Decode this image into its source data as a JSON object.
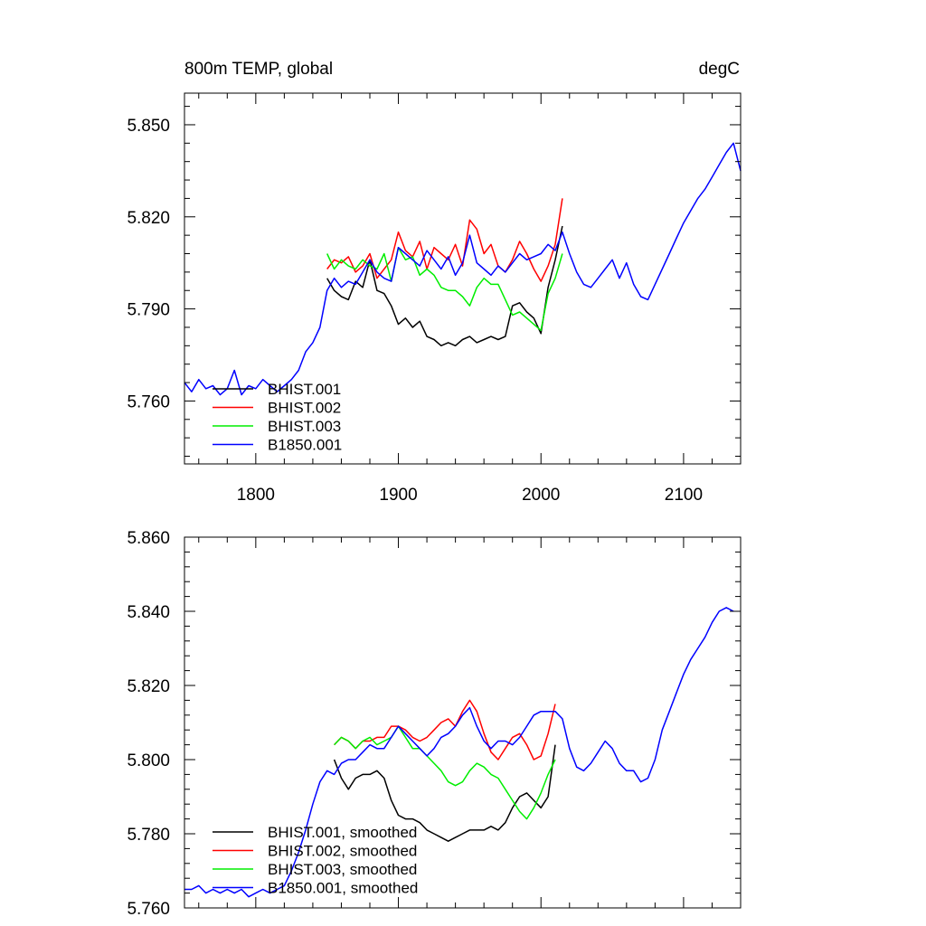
{
  "panels": [
    {
      "id": "top",
      "title_left": "800m TEMP, global",
      "title_right": "degC",
      "xlim": [
        1750,
        2140
      ],
      "ylim": [
        5.7395,
        5.8603
      ],
      "x_ticks": [
        1800,
        1900,
        2000,
        2100
      ],
      "x_tick_labels": [
        "1800",
        "1900",
        "2000",
        "2100"
      ],
      "y_ticks": [
        5.76,
        5.79,
        5.82,
        5.85
      ],
      "y_tick_labels": [
        "5.760",
        "5.790",
        "5.820",
        "5.850"
      ],
      "legend": [
        "BHIST.001",
        "BHIST.002",
        "BHIST.003",
        "B1850.001"
      ]
    },
    {
      "id": "bottom",
      "title_left": "",
      "title_right": "",
      "xlim": [
        1750,
        2140
      ],
      "ylim": [
        5.76,
        5.86
      ],
      "x_ticks": [
        1800,
        1900,
        2000,
        2100
      ],
      "x_tick_labels": [],
      "y_ticks": [
        5.76,
        5.78,
        5.8,
        5.82,
        5.84,
        5.86
      ],
      "y_tick_labels": [
        "5.760",
        "5.780",
        "5.800",
        "5.820",
        "5.840",
        "5.860"
      ],
      "legend": [
        "BHIST.001, smoothed",
        "BHIST.002, smoothed",
        "BHIST.003, smoothed",
        "B1850.001, smoothed"
      ]
    }
  ],
  "colors": {
    "BHIST.001": "#000000",
    "BHIST.002": "#ff0000",
    "BHIST.003": "#00ee00",
    "B1850.001": "#0000ff"
  },
  "chart_data": [
    {
      "type": "line",
      "series": [
        {
          "name": "BHIST.001",
          "color": "#000000",
          "x": [
            1850,
            1855,
            1860,
            1865,
            1870,
            1875,
            1880,
            1885,
            1890,
            1895,
            1900,
            1905,
            1910,
            1915,
            1920,
            1925,
            1930,
            1935,
            1940,
            1945,
            1950,
            1955,
            1960,
            1965,
            1970,
            1975,
            1980,
            1985,
            1990,
            1995,
            2000,
            2005,
            2010,
            2015
          ],
          "y": [
            5.8,
            5.796,
            5.794,
            5.793,
            5.799,
            5.797,
            5.806,
            5.796,
            5.795,
            5.791,
            5.785,
            5.787,
            5.784,
            5.786,
            5.781,
            5.78,
            5.778,
            5.779,
            5.778,
            5.78,
            5.781,
            5.779,
            5.78,
            5.781,
            5.78,
            5.781,
            5.791,
            5.792,
            5.789,
            5.787,
            5.782,
            5.797,
            5.806,
            5.817
          ]
        },
        {
          "name": "BHIST.002",
          "color": "#ff0000",
          "x": [
            1850,
            1855,
            1860,
            1865,
            1870,
            1875,
            1880,
            1885,
            1890,
            1895,
            1900,
            1905,
            1910,
            1915,
            1920,
            1925,
            1930,
            1935,
            1940,
            1945,
            1950,
            1955,
            1960,
            1965,
            1970,
            1975,
            1980,
            1985,
            1990,
            1995,
            2000,
            2005,
            2010,
            2015
          ],
          "y": [
            5.803,
            5.806,
            5.805,
            5.807,
            5.802,
            5.804,
            5.808,
            5.8,
            5.803,
            5.806,
            5.815,
            5.809,
            5.807,
            5.812,
            5.803,
            5.81,
            5.808,
            5.806,
            5.811,
            5.804,
            5.819,
            5.816,
            5.808,
            5.811,
            5.804,
            5.802,
            5.806,
            5.812,
            5.808,
            5.803,
            5.799,
            5.804,
            5.811,
            5.826
          ]
        },
        {
          "name": "BHIST.003",
          "color": "#00ee00",
          "x": [
            1850,
            1855,
            1860,
            1865,
            1870,
            1875,
            1880,
            1885,
            1890,
            1895,
            1900,
            1905,
            1910,
            1915,
            1920,
            1925,
            1930,
            1935,
            1940,
            1945,
            1950,
            1955,
            1960,
            1965,
            1970,
            1975,
            1980,
            1985,
            1990,
            1995,
            2000,
            2005,
            2010,
            2015
          ],
          "y": [
            5.808,
            5.803,
            5.806,
            5.804,
            5.803,
            5.806,
            5.804,
            5.803,
            5.808,
            5.799,
            5.81,
            5.806,
            5.807,
            5.801,
            5.803,
            5.801,
            5.797,
            5.796,
            5.796,
            5.794,
            5.791,
            5.797,
            5.8,
            5.798,
            5.798,
            5.793,
            5.788,
            5.789,
            5.787,
            5.785,
            5.783,
            5.795,
            5.8,
            5.808
          ]
        },
        {
          "name": "B1850.001",
          "color": "#0000ff",
          "x": [
            1750,
            1755,
            1760,
            1765,
            1770,
            1775,
            1780,
            1785,
            1790,
            1795,
            1800,
            1805,
            1810,
            1815,
            1820,
            1825,
            1830,
            1835,
            1840,
            1845,
            1850,
            1855,
            1860,
            1865,
            1870,
            1875,
            1880,
            1885,
            1890,
            1895,
            1900,
            1905,
            1910,
            1915,
            1920,
            1925,
            1930,
            1935,
            1940,
            1945,
            1950,
            1955,
            1960,
            1965,
            1970,
            1975,
            1980,
            1985,
            1990,
            1995,
            2000,
            2005,
            2010,
            2015,
            2020,
            2025,
            2030,
            2035,
            2040,
            2045,
            2050,
            2055,
            2060,
            2065,
            2070,
            2075,
            2080,
            2085,
            2090,
            2095,
            2100,
            2105,
            2110,
            2115,
            2120,
            2125,
            2130,
            2135,
            2140
          ],
          "y": [
            5.766,
            5.763,
            5.767,
            5.764,
            5.765,
            5.762,
            5.764,
            5.77,
            5.762,
            5.765,
            5.764,
            5.767,
            5.765,
            5.763,
            5.765,
            5.767,
            5.77,
            5.776,
            5.779,
            5.784,
            5.796,
            5.8,
            5.797,
            5.799,
            5.798,
            5.802,
            5.806,
            5.802,
            5.8,
            5.799,
            5.81,
            5.808,
            5.806,
            5.804,
            5.809,
            5.806,
            5.803,
            5.807,
            5.801,
            5.805,
            5.814,
            5.805,
            5.803,
            5.801,
            5.804,
            5.802,
            5.805,
            5.808,
            5.806,
            5.807,
            5.808,
            5.811,
            5.809,
            5.815,
            5.808,
            5.802,
            5.798,
            5.797,
            5.8,
            5.803,
            5.806,
            5.8,
            5.805,
            5.798,
            5.794,
            5.793,
            5.798,
            5.803,
            5.808,
            5.813,
            5.818,
            5.822,
            5.826,
            5.829,
            5.833,
            5.837,
            5.841,
            5.844,
            5.835
          ]
        }
      ]
    },
    {
      "type": "line",
      "series": [
        {
          "name": "BHIST.001, smoothed",
          "color": "#000000",
          "x": [
            1855,
            1860,
            1865,
            1870,
            1875,
            1880,
            1885,
            1890,
            1895,
            1900,
            1905,
            1910,
            1915,
            1920,
            1925,
            1930,
            1935,
            1940,
            1945,
            1950,
            1955,
            1960,
            1965,
            1970,
            1975,
            1980,
            1985,
            1990,
            1995,
            2000,
            2005,
            2010
          ],
          "y": [
            5.8,
            5.795,
            5.792,
            5.795,
            5.796,
            5.796,
            5.797,
            5.795,
            5.789,
            5.785,
            5.784,
            5.784,
            5.783,
            5.781,
            5.78,
            5.779,
            5.778,
            5.779,
            5.78,
            5.781,
            5.781,
            5.781,
            5.782,
            5.781,
            5.783,
            5.787,
            5.79,
            5.791,
            5.789,
            5.787,
            5.79,
            5.804
          ]
        },
        {
          "name": "BHIST.002, smoothed",
          "color": "#ff0000",
          "x": [
            1855,
            1860,
            1865,
            1870,
            1875,
            1880,
            1885,
            1890,
            1895,
            1900,
            1905,
            1910,
            1915,
            1920,
            1925,
            1930,
            1935,
            1940,
            1945,
            1950,
            1955,
            1960,
            1965,
            1970,
            1975,
            1980,
            1985,
            1990,
            1995,
            2000,
            2005,
            2010
          ],
          "y": [
            5.804,
            5.806,
            5.805,
            5.803,
            5.805,
            5.805,
            5.806,
            5.806,
            5.809,
            5.809,
            5.808,
            5.806,
            5.805,
            5.806,
            5.808,
            5.81,
            5.811,
            5.809,
            5.813,
            5.816,
            5.813,
            5.807,
            5.802,
            5.8,
            5.803,
            5.806,
            5.807,
            5.804,
            5.8,
            5.801,
            5.807,
            5.815
          ]
        },
        {
          "name": "BHIST.003, smoothed",
          "color": "#00ee00",
          "x": [
            1855,
            1860,
            1865,
            1870,
            1875,
            1880,
            1885,
            1890,
            1895,
            1900,
            1905,
            1910,
            1915,
            1920,
            1925,
            1930,
            1935,
            1940,
            1945,
            1950,
            1955,
            1960,
            1965,
            1970,
            1975,
            1980,
            1985,
            1990,
            1995,
            2000,
            2005,
            2010
          ],
          "y": [
            5.804,
            5.806,
            5.805,
            5.803,
            5.805,
            5.806,
            5.804,
            5.805,
            5.806,
            5.809,
            5.806,
            5.803,
            5.803,
            5.801,
            5.799,
            5.797,
            5.794,
            5.793,
            5.794,
            5.797,
            5.799,
            5.798,
            5.796,
            5.795,
            5.792,
            5.789,
            5.786,
            5.784,
            5.787,
            5.791,
            5.796,
            5.8
          ]
        },
        {
          "name": "B1850.001, smoothed",
          "color": "#0000ff",
          "x": [
            1750,
            1755,
            1760,
            1765,
            1770,
            1775,
            1780,
            1785,
            1790,
            1795,
            1800,
            1805,
            1810,
            1815,
            1820,
            1825,
            1830,
            1835,
            1840,
            1845,
            1850,
            1855,
            1860,
            1865,
            1870,
            1875,
            1880,
            1885,
            1890,
            1895,
            1900,
            1905,
            1910,
            1915,
            1920,
            1925,
            1930,
            1935,
            1940,
            1945,
            1950,
            1955,
            1960,
            1965,
            1970,
            1975,
            1980,
            1985,
            1990,
            1995,
            2000,
            2005,
            2010,
            2015,
            2020,
            2025,
            2030,
            2035,
            2040,
            2045,
            2050,
            2055,
            2060,
            2065,
            2070,
            2075,
            2080,
            2085,
            2090,
            2095,
            2100,
            2105,
            2110,
            2115,
            2120,
            2125,
            2130,
            2135
          ],
          "y": [
            5.765,
            5.765,
            5.766,
            5.764,
            5.765,
            5.764,
            5.765,
            5.764,
            5.765,
            5.763,
            5.764,
            5.765,
            5.764,
            5.765,
            5.766,
            5.77,
            5.775,
            5.781,
            5.788,
            5.794,
            5.797,
            5.796,
            5.799,
            5.8,
            5.8,
            5.802,
            5.804,
            5.803,
            5.803,
            5.806,
            5.809,
            5.807,
            5.805,
            5.803,
            5.801,
            5.803,
            5.806,
            5.807,
            5.809,
            5.812,
            5.814,
            5.809,
            5.805,
            5.803,
            5.805,
            5.805,
            5.804,
            5.806,
            5.809,
            5.812,
            5.813,
            5.813,
            5.813,
            5.811,
            5.803,
            5.798,
            5.797,
            5.799,
            5.802,
            5.805,
            5.803,
            5.799,
            5.797,
            5.797,
            5.794,
            5.795,
            5.8,
            5.808,
            5.813,
            5.818,
            5.823,
            5.827,
            5.83,
            5.833,
            5.837,
            5.84,
            5.841,
            5.84
          ]
        }
      ]
    }
  ]
}
